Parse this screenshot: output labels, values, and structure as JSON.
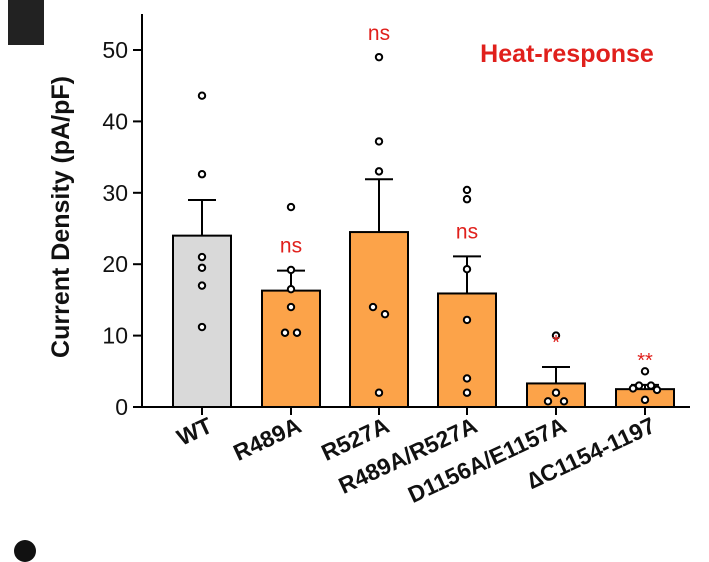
{
  "chart_data": {
    "type": "bar",
    "title": "Heat-response",
    "ylabel": "Current Density  (pA/pF)",
    "xlabel": "",
    "ylim": [
      0,
      55
    ],
    "yticks": [
      0,
      10,
      20,
      30,
      40,
      50
    ],
    "grid": false,
    "categories": [
      "WT",
      "R489A",
      "R527A",
      "R489A/R527A",
      "D1156A/E1157A",
      "∆C1154-1197"
    ],
    "values": [
      24.0,
      16.3,
      24.5,
      15.9,
      3.3,
      2.5
    ],
    "sem": [
      5.0,
      2.8,
      7.4,
      5.2,
      2.3,
      0.6
    ],
    "points": [
      [
        43.6,
        32.6,
        21.0,
        19.5,
        17.0,
        11.2
      ],
      [
        28.0,
        19.2,
        16.5,
        14.0,
        10.4,
        10.4
      ],
      [
        49.0,
        37.2,
        33.0,
        14.0,
        13.0,
        2.0
      ],
      [
        30.4,
        29.1,
        19.3,
        12.2,
        4.0,
        2.0
      ],
      [
        10.0,
        2.0,
        0.8,
        0.8
      ],
      [
        5.0,
        3.0,
        3.0,
        2.6,
        2.4,
        1.0
      ]
    ],
    "significance": [
      "",
      "ns",
      "ns",
      "ns",
      "*",
      "**"
    ],
    "colors": {
      "control": "#d9d9d9",
      "mutant": "#fca349",
      "significance": "#e0201c",
      "title": "#e0201c"
    }
  }
}
